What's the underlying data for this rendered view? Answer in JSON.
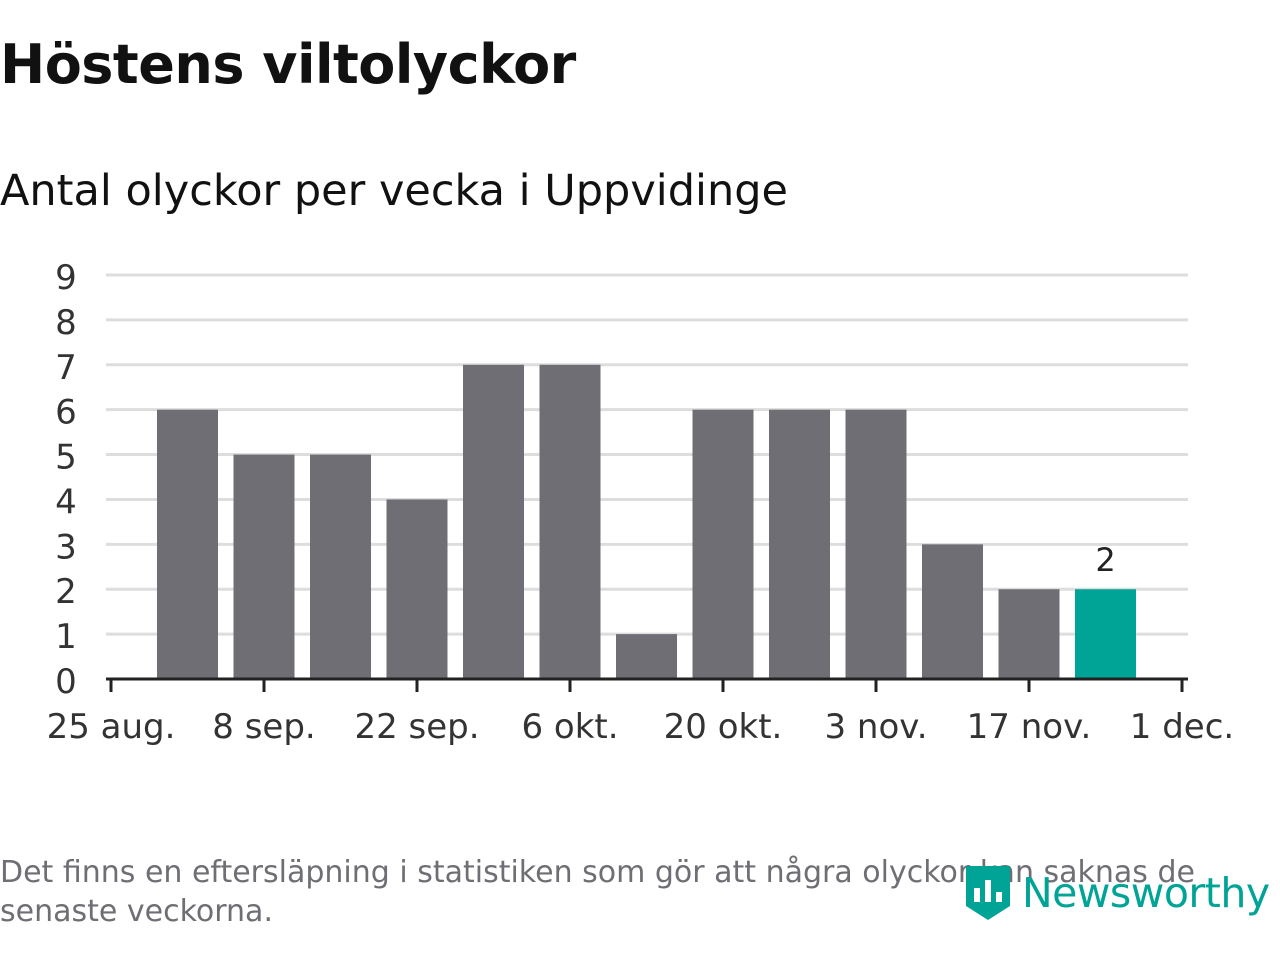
{
  "title": "Höstens viltolyckor",
  "subtitle": "Antal olyckor per vecka i Uppvidinge",
  "footnote": "Det finns en eftersläpning i statistiken som gör att några olyckor kan saknas de senaste veckorna.",
  "logo_text": "Newsworthy",
  "colors": {
    "bar": "#6f6e75",
    "highlight": "#00a497",
    "grid": "#dddddd"
  },
  "chart_data": {
    "type": "bar",
    "x_tick_labels": [
      "25 aug.",
      "8 sep.",
      "22 sep.",
      "6 okt.",
      "20 okt.",
      "3 nov.",
      "17 nov.",
      "1 dec."
    ],
    "y_ticks": [
      0,
      1,
      2,
      3,
      4,
      5,
      6,
      7,
      8,
      9
    ],
    "values": [
      6,
      5,
      5,
      4,
      7,
      7,
      1,
      6,
      6,
      6,
      3,
      2,
      2
    ],
    "highlight_index": 12,
    "data_labels": [
      {
        "index": 12,
        "text": "2"
      }
    ],
    "ylim": [
      0,
      9
    ],
    "grid": true,
    "xlabel": "",
    "ylabel": ""
  }
}
